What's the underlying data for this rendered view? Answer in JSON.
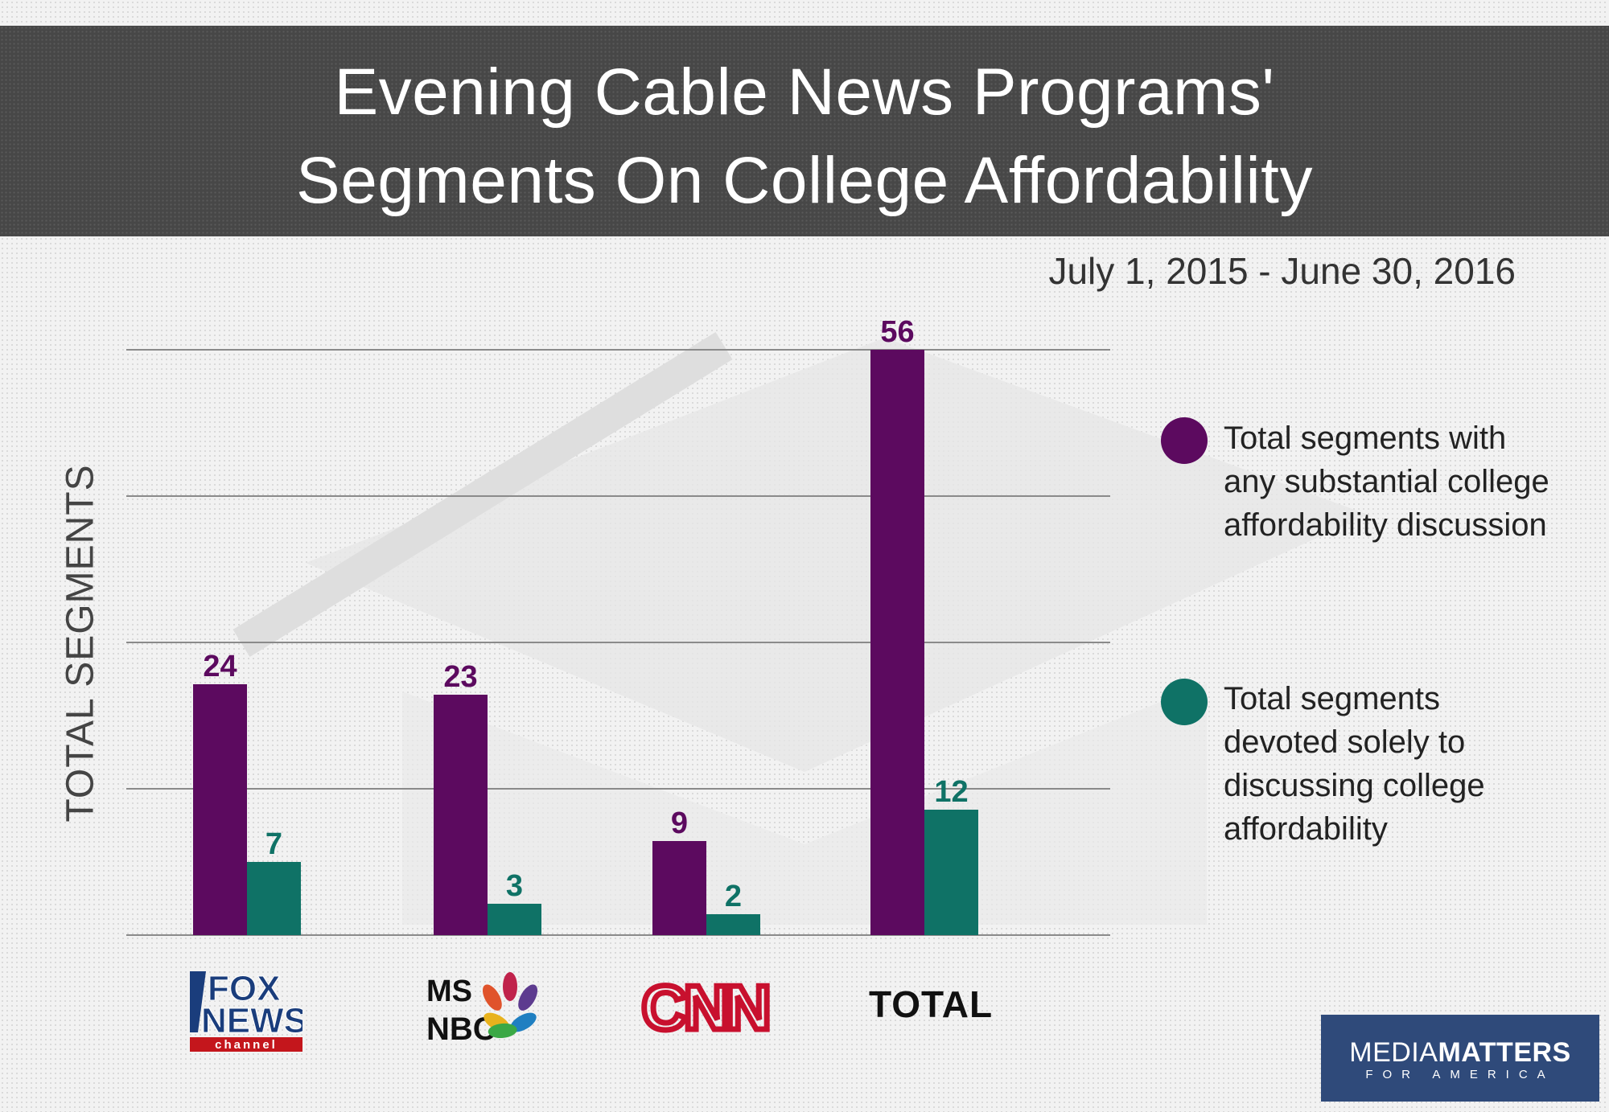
{
  "title_line1": "Evening Cable News Programs'",
  "title_line2": "Segments On College Affordability",
  "subtitle": "July 1, 2015 - June 30, 2016",
  "colors": {
    "series_any": "#5c0a5f",
    "series_solely": "#0f7266",
    "title_band": "#474747",
    "grid": "#8a8a8a"
  },
  "legend": [
    {
      "text": "Total segments with any substantial college affordability discussion",
      "color": "#5c0a5f"
    },
    {
      "text": "Total segments devoted solely to discussing college affordability",
      "color": "#0f7266"
    }
  ],
  "logos": {
    "fox": {
      "icon": "fox-news-channel-logo",
      "line1": "FOX",
      "line2": "NEWS",
      "line3": "channel"
    },
    "msnbc": {
      "icon": "msnbc-peacock-logo",
      "line1": "MS",
      "line2": "NBC"
    },
    "cnn": {
      "icon": "cnn-logo",
      "text": "CNN"
    },
    "total": "TOTAL"
  },
  "media_matters": {
    "top_light": "MEDIA",
    "top_bold": "MATTERS",
    "bottom": "FOR AMERICA"
  },
  "chart_data": {
    "type": "bar",
    "categories": [
      "FOX NEWS",
      "MSNBC",
      "CNN",
      "TOTAL"
    ],
    "series": [
      {
        "name": "Total segments with any substantial college affordability discussion",
        "values": [
          24,
          23,
          9,
          56
        ]
      },
      {
        "name": "Total segments devoted solely to discussing college affordability",
        "values": [
          7,
          3,
          2,
          12
        ]
      }
    ],
    "title": "Evening Cable News Programs' Segments On College Affordability",
    "ylabel": "TOTAL SEGMENTS",
    "xlabel": "",
    "ylim": [
      0,
      56
    ],
    "grid": true,
    "legend_position": "right",
    "data_labels": true
  }
}
